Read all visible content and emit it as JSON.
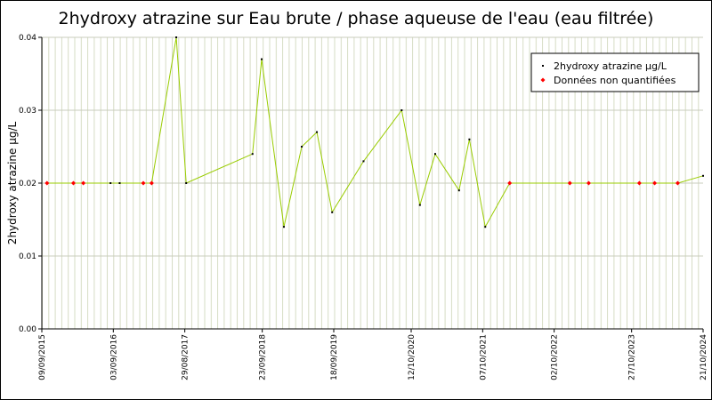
{
  "chart_data": {
    "type": "line",
    "title": "2hydroxy atrazine sur Eau brute / phase aqueuse de l'eau (eau filtrée)",
    "y_label": "2hydroxy atrazine µg/L",
    "x": [
      "2015-10-05",
      "2016-02-15",
      "2016-04-05",
      "2016-08-20",
      "2016-10-05",
      "2017-02-01",
      "2017-03-15",
      "2017-07-17",
      "2017-09-05",
      "2018-08-05",
      "2018-09-20",
      "2019-01-10",
      "2019-04-10",
      "2019-06-25",
      "2019-09-10",
      "2020-02-15",
      "2020-08-25",
      "2020-11-25",
      "2021-02-10",
      "2021-06-10",
      "2021-08-01",
      "2021-10-20",
      "2022-02-20",
      "2022-12-20",
      "2023-03-25",
      "2023-12-05",
      "2024-02-20",
      "2024-06-15",
      "2024-10-21"
    ],
    "series": [
      {
        "name": "2hydroxy atrazine µg/L",
        "color": "#99cc00",
        "marker_color": "#000000",
        "values": [
          0.02,
          0.02,
          0.02,
          0.02,
          0.02,
          0.02,
          0.02,
          0.04,
          0.02,
          0.024,
          0.037,
          0.014,
          0.025,
          0.027,
          0.016,
          0.023,
          0.03,
          0.017,
          0.024,
          0.019,
          0.026,
          0.014,
          0.02,
          0.02,
          0.02,
          0.02,
          0.02,
          0.02,
          0.021
        ]
      },
      {
        "name": "Données non quantifiées",
        "color": "#ff0000",
        "values": [
          0.02,
          0.02,
          0.02,
          null,
          null,
          0.02,
          0.02,
          null,
          null,
          null,
          null,
          null,
          null,
          null,
          null,
          null,
          null,
          null,
          null,
          null,
          null,
          null,
          0.02,
          0.02,
          0.02,
          0.02,
          0.02,
          0.02,
          null
        ]
      }
    ],
    "xlim": [
      "2015-09-09",
      "2024-10-21"
    ],
    "xticks": [
      {
        "value": "2015-09-09",
        "label": "09/09/2015"
      },
      {
        "value": "2016-09-03",
        "label": "03/09/2016"
      },
      {
        "value": "2017-08-29",
        "label": "29/08/2017"
      },
      {
        "value": "2018-09-23",
        "label": "23/09/2018"
      },
      {
        "value": "2019-09-18",
        "label": "18/09/2019"
      },
      {
        "value": "2020-10-12",
        "label": "12/10/2020"
      },
      {
        "value": "2021-10-07",
        "label": "07/10/2021"
      },
      {
        "value": "2022-10-02",
        "label": "02/10/2022"
      },
      {
        "value": "2023-10-27",
        "label": "27/10/2023"
      },
      {
        "value": "2024-10-21",
        "label": "21/10/2024"
      }
    ],
    "ylim": [
      0,
      0.04
    ],
    "yticks": [
      {
        "value": 0,
        "label": "0.00"
      },
      0.01,
      0.02,
      0.03,
      0.04
    ],
    "grid": true,
    "legend": "top-right"
  }
}
